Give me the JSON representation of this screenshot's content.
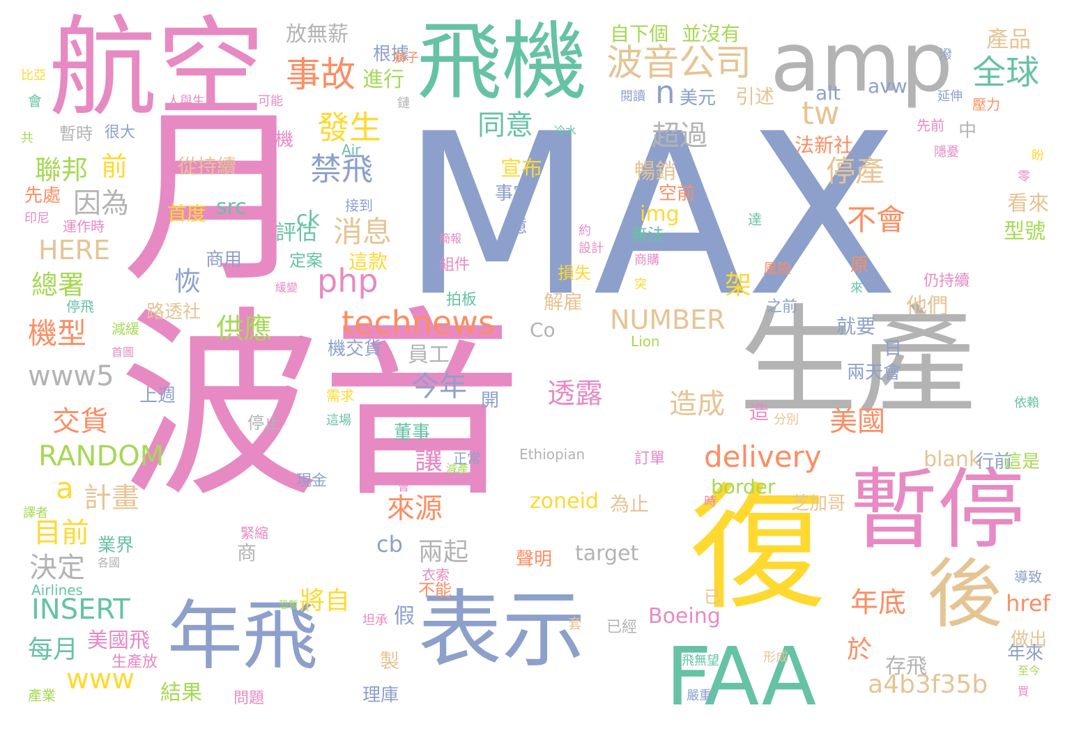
{
  "palette": {
    "pink": "#e78ac3",
    "blue": "#8da0cb",
    "gray": "#b3b3b3",
    "green": "#66c2a5",
    "yellow": "#ffd92f",
    "tan": "#e5c494",
    "orange": "#fc8d62",
    "lime": "#a6d854"
  },
  "words": [
    {
      "t": "MAX",
      "c": "blue"
    },
    {
      "t": "波音",
      "c": "pink"
    },
    {
      "t": "月",
      "c": "pink"
    },
    {
      "t": "航空",
      "c": "pink"
    },
    {
      "t": "飛機",
      "c": "green"
    },
    {
      "t": "amp",
      "c": "gray"
    },
    {
      "t": "生產",
      "c": "gray"
    },
    {
      "t": "復",
      "c": "yellow"
    },
    {
      "t": "暫停",
      "c": "pink"
    },
    {
      "t": "後",
      "c": "tan"
    },
    {
      "t": "表示",
      "c": "blue"
    },
    {
      "t": "年飛",
      "c": "blue"
    },
    {
      "t": "FAA",
      "c": "green"
    },
    {
      "t": "波音公司",
      "c": "tan"
    },
    {
      "t": "事故",
      "c": "orange"
    },
    {
      "t": "全球",
      "c": "green"
    },
    {
      "t": "發生",
      "c": "yellow"
    },
    {
      "t": "禁飛",
      "c": "blue"
    },
    {
      "t": "同意",
      "c": "green"
    },
    {
      "t": "超過",
      "c": "gray"
    },
    {
      "t": "tw",
      "c": "tan"
    },
    {
      "t": "n",
      "c": "blue"
    },
    {
      "t": "停產",
      "c": "tan"
    },
    {
      "t": "不會",
      "c": "orange"
    },
    {
      "t": "消息",
      "c": "tan"
    },
    {
      "t": "php",
      "c": "pink"
    },
    {
      "t": "technews",
      "c": "orange"
    },
    {
      "t": "delivery",
      "c": "orange"
    },
    {
      "t": "a4b3f35b",
      "c": "tan"
    },
    {
      "t": "www5",
      "c": "gray"
    },
    {
      "t": "RANDOM",
      "c": "lime"
    },
    {
      "t": "INSERT",
      "c": "green"
    },
    {
      "t": "www",
      "c": "yellow"
    },
    {
      "t": "HERE",
      "c": "tan"
    },
    {
      "t": "NUMBER",
      "c": "tan"
    },
    {
      "t": "Boeing",
      "c": "pink"
    },
    {
      "t": "zoneid",
      "c": "yellow"
    },
    {
      "t": "target",
      "c": "gray"
    },
    {
      "t": "Ethiopian",
      "c": "gray"
    },
    {
      "t": "border",
      "c": "lime"
    },
    {
      "t": "blank",
      "c": "tan"
    },
    {
      "t": "href",
      "c": "orange"
    },
    {
      "t": "alt",
      "c": "blue"
    },
    {
      "t": "avw",
      "c": "blue"
    },
    {
      "t": "img",
      "c": "yellow"
    },
    {
      "t": "src",
      "c": "green"
    },
    {
      "t": "ck",
      "c": "green"
    },
    {
      "t": "cb",
      "c": "blue"
    },
    {
      "t": "Co",
      "c": "gray"
    },
    {
      "t": "a",
      "c": "yellow"
    },
    {
      "t": "Air",
      "c": "green"
    },
    {
      "t": "Lion",
      "c": "lime"
    },
    {
      "t": "Airlines",
      "c": "green"
    },
    {
      "t": "聯邦",
      "c": "lime"
    },
    {
      "t": "前",
      "c": "yellow"
    },
    {
      "t": "因為",
      "c": "gray"
    },
    {
      "t": "總署",
      "c": "lime"
    },
    {
      "t": "恢",
      "c": "blue"
    },
    {
      "t": "機型",
      "c": "orange"
    },
    {
      "t": "供應",
      "c": "lime"
    },
    {
      "t": "架",
      "c": "yellow"
    },
    {
      "t": "交貨",
      "c": "orange"
    },
    {
      "t": "今年",
      "c": "blue"
    },
    {
      "t": "透露",
      "c": "pink"
    },
    {
      "t": "造成",
      "c": "tan"
    },
    {
      "t": "美國",
      "c": "orange"
    },
    {
      "t": "年底",
      "c": "orange"
    },
    {
      "t": "計畫",
      "c": "tan"
    },
    {
      "t": "目前",
      "c": "yellow"
    },
    {
      "t": "讓",
      "c": "pink"
    },
    {
      "t": "來源",
      "c": "orange"
    },
    {
      "t": "決定",
      "c": "gray"
    },
    {
      "t": "兩起",
      "c": "gray"
    },
    {
      "t": "每月",
      "c": "green"
    },
    {
      "t": "美國飛",
      "c": "pink"
    },
    {
      "t": "將自",
      "c": "yellow"
    },
    {
      "t": "於",
      "c": "orange"
    },
    {
      "t": "存飛",
      "c": "gray"
    },
    {
      "t": "結果",
      "c": "lime"
    },
    {
      "t": "假",
      "c": "blue"
    },
    {
      "t": "放無薪",
      "c": "gray"
    },
    {
      "t": "根據",
      "c": "blue"
    },
    {
      "t": "進行",
      "c": "lime"
    },
    {
      "t": "自下個",
      "c": "lime"
    },
    {
      "t": "並沒有",
      "c": "lime"
    },
    {
      "t": "產品",
      "c": "tan"
    },
    {
      "t": "美元",
      "c": "blue"
    },
    {
      "t": "引述",
      "c": "tan"
    },
    {
      "t": "宣布",
      "c": "yellow"
    },
    {
      "t": "暢銷",
      "c": "tan"
    },
    {
      "t": "事宜",
      "c": "blue"
    },
    {
      "t": "空前",
      "c": "orange"
    },
    {
      "t": "法新社",
      "c": "orange"
    },
    {
      "t": "中",
      "c": "gray"
    },
    {
      "t": "看來",
      "c": "tan"
    },
    {
      "t": "型號",
      "c": "lime"
    },
    {
      "t": "評估",
      "c": "green"
    },
    {
      "t": "定案",
      "c": "green"
    },
    {
      "t": "這款",
      "c": "yellow"
    },
    {
      "t": "億",
      "c": "blue"
    },
    {
      "t": "無法",
      "c": "green"
    },
    {
      "t": "損失",
      "c": "yellow"
    },
    {
      "t": "解雇",
      "c": "tan"
    },
    {
      "t": "原",
      "c": "orange"
    },
    {
      "t": "他們",
      "c": "tan"
    },
    {
      "t": "就要",
      "c": "blue"
    },
    {
      "t": "日",
      "c": "blue"
    },
    {
      "t": "員工",
      "c": "gray"
    },
    {
      "t": "機交貨",
      "c": "blue"
    },
    {
      "t": "兩天會",
      "c": "blue"
    },
    {
      "t": "開",
      "c": "blue"
    },
    {
      "t": "董事",
      "c": "green"
    },
    {
      "t": "造",
      "c": "pink"
    },
    {
      "t": "行前",
      "c": "blue"
    },
    {
      "t": "這是",
      "c": "lime"
    },
    {
      "t": "為止",
      "c": "tan"
    },
    {
      "t": "芝加哥",
      "c": "tan"
    },
    {
      "t": "聲明",
      "c": "orange"
    },
    {
      "t": "商",
      "c": "gray"
    },
    {
      "t": "不能",
      "c": "orange"
    },
    {
      "t": "做出",
      "c": "tan"
    },
    {
      "t": "年來",
      "c": "blue"
    },
    {
      "t": "已",
      "c": "tan"
    },
    {
      "t": "製",
      "c": "tan"
    },
    {
      "t": "理庫",
      "c": "blue"
    },
    {
      "t": "已經",
      "c": "gray"
    },
    {
      "t": "套",
      "c": "tan"
    },
    {
      "t": "暫時",
      "c": "gray"
    },
    {
      "t": "很大",
      "c": "blue"
    },
    {
      "t": "機",
      "c": "pink"
    },
    {
      "t": "從持續",
      "c": "tan"
    },
    {
      "t": "先處",
      "c": "orange"
    },
    {
      "t": "首度",
      "c": "yellow"
    },
    {
      "t": "商用",
      "c": "blue"
    },
    {
      "t": "路透社",
      "c": "tan"
    },
    {
      "t": "上週",
      "c": "blue"
    },
    {
      "t": "停止",
      "c": "gray"
    },
    {
      "t": "業界",
      "c": "green"
    },
    {
      "t": "接到",
      "c": "blue"
    },
    {
      "t": "拍板",
      "c": "green"
    },
    {
      "t": "組件",
      "c": "pink"
    },
    {
      "t": "運作時",
      "c": "pink"
    },
    {
      "t": "停飛",
      "c": "green"
    },
    {
      "t": "減緩",
      "c": "lime"
    },
    {
      "t": "首圖",
      "c": "pink"
    },
    {
      "t": "需求",
      "c": "yellow"
    },
    {
      "t": "這場",
      "c": "green"
    },
    {
      "t": "正常",
      "c": "blue"
    },
    {
      "t": "減產",
      "c": "lime"
    },
    {
      "t": "訂單",
      "c": "pink"
    },
    {
      "t": "現金",
      "c": "blue"
    },
    {
      "t": "緊縮",
      "c": "pink"
    },
    {
      "t": "衣索",
      "c": "pink"
    },
    {
      "t": "恐暫",
      "c": "lime"
    },
    {
      "t": "坦承",
      "c": "pink"
    },
    {
      "t": "生產放",
      "c": "pink"
    },
    {
      "t": "飛無望",
      "c": "green"
    },
    {
      "t": "形成",
      "c": "tan"
    },
    {
      "t": "嚴重",
      "c": "blue"
    },
    {
      "t": "至今",
      "c": "lime"
    },
    {
      "t": "買",
      "c": "pink"
    },
    {
      "t": "問題",
      "c": "pink"
    },
    {
      "t": "產業",
      "c": "lime"
    },
    {
      "t": "導致",
      "c": "blue"
    },
    {
      "t": "分別",
      "c": "tan"
    },
    {
      "t": "依賴",
      "c": "green"
    },
    {
      "t": "時",
      "c": "pink"
    },
    {
      "t": "會",
      "c": "pink"
    },
    {
      "t": "譯者",
      "c": "lime"
    },
    {
      "t": "各國",
      "c": "gray"
    },
    {
      "t": "比亞",
      "c": "yellow"
    },
    {
      "t": "會",
      "c": "green"
    },
    {
      "t": "人與生",
      "c": "pink"
    },
    {
      "t": "可能",
      "c": "pink"
    },
    {
      "t": "獅子",
      "c": "orange"
    },
    {
      "t": "鏈",
      "c": "gray"
    },
    {
      "t": "共",
      "c": "lime"
    },
    {
      "t": "印尼",
      "c": "pink"
    },
    {
      "t": "閱讀",
      "c": "blue"
    },
    {
      "t": "冷水",
      "c": "green"
    },
    {
      "t": "延伸",
      "c": "blue"
    },
    {
      "t": "壓力",
      "c": "orange"
    },
    {
      "t": "先前",
      "c": "pink"
    },
    {
      "t": "隱憂",
      "c": "pink"
    },
    {
      "t": "盼",
      "c": "yellow"
    },
    {
      "t": "零",
      "c": "pink"
    },
    {
      "t": "達",
      "c": "green"
    },
    {
      "t": "約",
      "c": "pink"
    },
    {
      "t": "設計",
      "c": "pink"
    },
    {
      "t": "簡報",
      "c": "pink"
    },
    {
      "t": "商購",
      "c": "pink"
    },
    {
      "t": "突",
      "c": "yellow"
    },
    {
      "t": "風險",
      "c": "orange"
    },
    {
      "t": "仍持續",
      "c": "pink"
    },
    {
      "t": "之前",
      "c": "blue"
    },
    {
      "t": "來",
      "c": "green"
    },
    {
      "t": "緩變",
      "c": "pink"
    },
    {
      "t": "潑",
      "c": "blue"
    }
  ]
}
